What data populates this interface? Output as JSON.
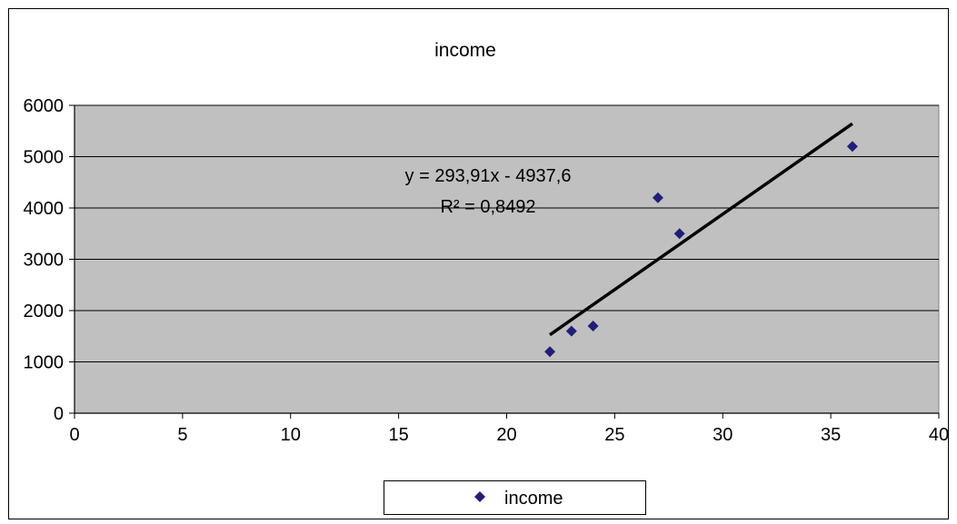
{
  "chart_data": {
    "type": "scatter",
    "title": "income",
    "xlabel": "",
    "ylabel": "",
    "xlim": [
      0,
      40
    ],
    "ylim": [
      0,
      6000
    ],
    "xticks": [
      0,
      5,
      10,
      15,
      20,
      25,
      30,
      35,
      40
    ],
    "yticks": [
      0,
      1000,
      2000,
      3000,
      4000,
      5000,
      6000
    ],
    "grid": "horizontal",
    "plot_background": "#c0c0c0",
    "legend_position": "bottom",
    "series": [
      {
        "name": "income",
        "color": "#1f1f7a",
        "marker": "diamond",
        "x": [
          22,
          23,
          24,
          27,
          28,
          36
        ],
        "y": [
          1200,
          1600,
          1700,
          4200,
          3500,
          5200
        ]
      }
    ],
    "trendline": {
      "type": "linear",
      "slope": 293.91,
      "intercept": -4937.6,
      "x_range": [
        22,
        36
      ],
      "color": "#000000",
      "equation_label": "y = 293,91x - 4937,6",
      "r2_label": "R² = 0,8492"
    }
  }
}
